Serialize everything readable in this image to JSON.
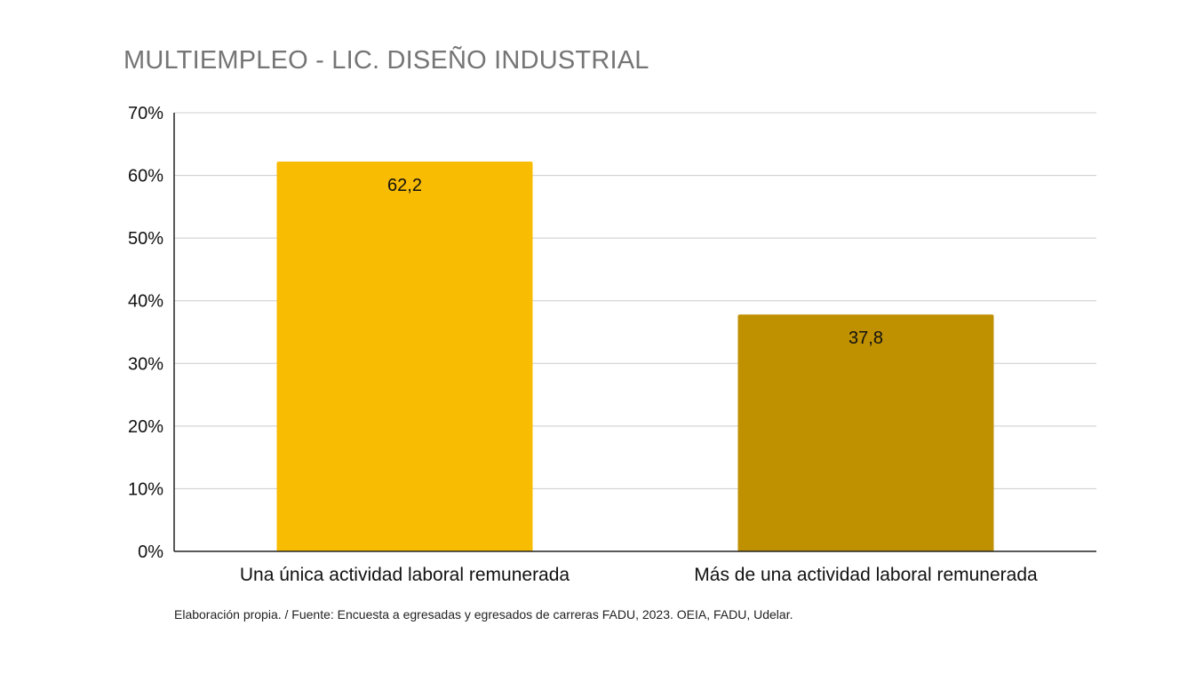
{
  "title": "MULTIEMPLEO - LIC. DISEÑO INDUSTRIAL",
  "source": "Elaboración propia. / Fuente: Encuesta a egresadas y egresados de carreras FADU, 2023. OEIA, FADU, Udelar.",
  "chart_data": {
    "type": "bar",
    "title": "MULTIEMPLEO - LIC. DISEÑO INDUSTRIAL",
    "categories": [
      "Una única actividad laboral remunerada",
      "Más de una actividad laboral remunerada"
    ],
    "values": [
      62.2,
      37.8
    ],
    "value_labels": [
      "62,2",
      "37,8"
    ],
    "colors": [
      "#F8BC02",
      "#BF9000"
    ],
    "ylim": [
      0,
      70
    ],
    "yticks": [
      0,
      10,
      20,
      30,
      40,
      50,
      60,
      70
    ],
    "ytick_labels": [
      "0%",
      "10%",
      "20%",
      "30%",
      "40%",
      "50%",
      "60%",
      "70%"
    ],
    "xlabel": "",
    "ylabel": "",
    "grid": true,
    "legend": "none"
  }
}
